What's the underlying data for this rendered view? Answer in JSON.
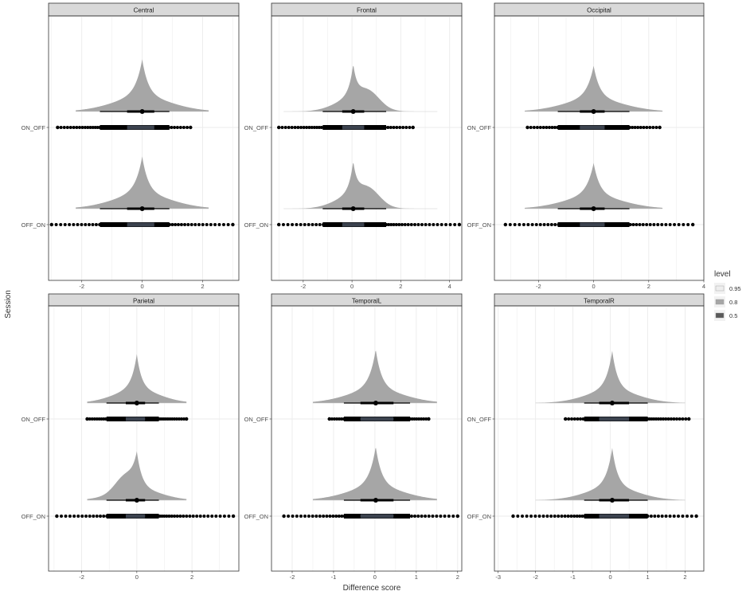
{
  "chart_data": {
    "type": "halfeye-dotplot",
    "xlabel": "Difference score",
    "ylabel": "Session",
    "categories": [
      "ON_OFF",
      "OFF_ON"
    ],
    "legend": {
      "title": "level",
      "position": "right",
      "entries": [
        {
          "label": "0.95",
          "color": "#eeeeee"
        },
        {
          "label": "0.8",
          "color": "#a6a6a6"
        },
        {
          "label": "0.5",
          "color": "#595959"
        }
      ]
    },
    "colors": {
      "density": "#a6a6a6",
      "strip": "#000000",
      "strip_core": "#454e5c",
      "point": "#000000",
      "panel_header": "#d9d9d9",
      "grid": "#ebebeb"
    },
    "panels": [
      {
        "title": "Central",
        "xlim": [
          -3.1,
          3.2
        ],
        "xticks": [
          -2,
          0,
          2
        ],
        "series": [
          {
            "session": "ON_OFF",
            "center": 0,
            "spread": 0.2,
            "skew": 0.25,
            "bump": null,
            "peak": 0.8,
            "int95": [
              -2.2,
              2.2
            ],
            "int80": [
              -1.4,
              0.9
            ],
            "int50": [
              -0.5,
              0.4
            ],
            "points_range": [
              -2.8,
              1.6
            ]
          },
          {
            "session": "OFF_ON",
            "center": 0,
            "spread": 0.2,
            "skew": 0.25,
            "bump": null,
            "peak": 0.8,
            "int95": [
              -2.2,
              2.2
            ],
            "int80": [
              -1.4,
              0.9
            ],
            "int50": [
              -0.5,
              0.4
            ],
            "points_range": [
              -3.0,
              3.0
            ]
          }
        ]
      },
      {
        "title": "Frontal",
        "xlim": [
          -3.3,
          4.5
        ],
        "xticks": [
          -2,
          0,
          2,
          4
        ],
        "series": [
          {
            "session": "ON_OFF",
            "center": 0.05,
            "spread": 0.15,
            "skew": 0.3,
            "bump": [
              0.7,
              0.45,
              0.3
            ],
            "peak": 0.7,
            "int95": [
              -2.8,
              3.5
            ],
            "int80": [
              -1.2,
              1.4
            ],
            "int50": [
              -0.4,
              0.5
            ],
            "points_range": [
              -3.0,
              2.5
            ]
          },
          {
            "session": "OFF_ON",
            "center": 0.05,
            "spread": 0.15,
            "skew": 0.3,
            "bump": [
              0.7,
              0.45,
              0.3
            ],
            "peak": 0.7,
            "int95": [
              -2.8,
              3.5
            ],
            "int80": [
              -1.2,
              1.4
            ],
            "int50": [
              -0.4,
              0.5
            ],
            "points_range": [
              -3.0,
              4.4
            ]
          }
        ]
      },
      {
        "title": "Occipital",
        "xlim": [
          -3.6,
          4.0
        ],
        "xticks": [
          -2,
          0,
          2,
          4
        ],
        "series": [
          {
            "session": "ON_OFF",
            "center": 0,
            "spread": 0.22,
            "skew": 0.25,
            "bump": null,
            "peak": 0.7,
            "int95": [
              -2.5,
              2.5
            ],
            "int80": [
              -1.3,
              1.3
            ],
            "int50": [
              -0.5,
              0.4
            ],
            "points_range": [
              -2.4,
              2.4
            ]
          },
          {
            "session": "OFF_ON",
            "center": 0,
            "spread": 0.22,
            "skew": 0.25,
            "bump": null,
            "peak": 0.7,
            "int95": [
              -2.5,
              2.5
            ],
            "int80": [
              -1.3,
              1.3
            ],
            "int50": [
              -0.5,
              0.4
            ],
            "points_range": [
              -3.2,
              3.6
            ]
          }
        ]
      },
      {
        "title": "Parietal",
        "xlim": [
          -3.2,
          3.7
        ],
        "xticks": [
          -2,
          0,
          2
        ],
        "series": [
          {
            "session": "ON_OFF",
            "center": 0,
            "spread": 0.17,
            "skew": 0.25,
            "bump": null,
            "peak": 0.75,
            "int95": [
              -1.8,
              1.8
            ],
            "int80": [
              -1.1,
              0.8
            ],
            "int50": [
              -0.4,
              0.3
            ],
            "points_range": [
              -1.8,
              1.8
            ]
          },
          {
            "session": "OFF_ON",
            "center": 0,
            "spread": 0.17,
            "skew": 0.25,
            "bump": [
              -0.45,
              0.35,
              0.3
            ],
            "peak": 0.75,
            "int95": [
              -1.8,
              1.8
            ],
            "int80": [
              -1.1,
              0.8
            ],
            "int50": [
              -0.4,
              0.3
            ],
            "points_range": [
              -2.9,
              3.5
            ]
          }
        ]
      },
      {
        "title": "TemporalL",
        "xlim": [
          -2.5,
          2.1
        ],
        "xticks": [
          -2,
          -1,
          0,
          1,
          2
        ],
        "series": [
          {
            "session": "ON_OFF",
            "center": 0.02,
            "spread": 0.14,
            "skew": 0.22,
            "bump": null,
            "peak": 0.8,
            "int95": [
              -1.5,
              1.5
            ],
            "int80": [
              -0.75,
              0.85
            ],
            "int50": [
              -0.35,
              0.45
            ],
            "points_range": [
              -1.1,
              1.3
            ]
          },
          {
            "session": "OFF_ON",
            "center": 0.02,
            "spread": 0.14,
            "skew": 0.22,
            "bump": null,
            "peak": 0.8,
            "int95": [
              -1.5,
              1.5
            ],
            "int80": [
              -0.75,
              0.85
            ],
            "int50": [
              -0.35,
              0.45
            ],
            "points_range": [
              -2.2,
              2.0
            ]
          }
        ]
      },
      {
        "title": "TemporalR",
        "xlim": [
          -3.1,
          2.5
        ],
        "xticks": [
          -3,
          -2,
          -1,
          0,
          1,
          2
        ],
        "series": [
          {
            "session": "ON_OFF",
            "center": 0.05,
            "spread": 0.14,
            "skew": 0.22,
            "bump": null,
            "peak": 0.8,
            "int95": [
              -2.0,
              2.0
            ],
            "int80": [
              -0.7,
              1.0
            ],
            "int50": [
              -0.3,
              0.5
            ],
            "points_range": [
              -1.2,
              2.1
            ]
          },
          {
            "session": "OFF_ON",
            "center": 0.05,
            "spread": 0.14,
            "skew": 0.22,
            "bump": null,
            "peak": 0.8,
            "int95": [
              -2.0,
              2.0
            ],
            "int80": [
              -0.7,
              1.0
            ],
            "int50": [
              -0.3,
              0.5
            ],
            "points_range": [
              -2.6,
              2.3
            ]
          }
        ]
      }
    ]
  }
}
